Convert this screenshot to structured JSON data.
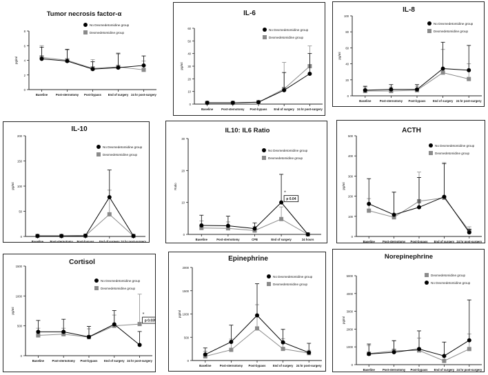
{
  "colors": {
    "no_dex": "#000000",
    "dex": "#8a8a8a",
    "axis": "#222222"
  },
  "chart_data": [
    {
      "id": "tnf",
      "type": "line",
      "title": "Tumor necrosis factor-α",
      "ylabel": "pg/ml",
      "ylim": [
        0,
        8
      ],
      "yticks": [
        "0",
        "2",
        "4",
        "6",
        "8"
      ],
      "categories": [
        "Baseline",
        "Post-sternotomy",
        "Post-bypass",
        "End of surgery",
        "24 hr post-surgery"
      ],
      "legend_order": [
        "no_dex",
        "dex"
      ],
      "series": [
        {
          "key": "no_dex",
          "name": "No Dexmedetomidine group",
          "values": [
            4.2,
            3.9,
            2.8,
            3.0,
            3.3
          ],
          "err": [
            1.6,
            1.6,
            1.0,
            1.9,
            1.3
          ]
        },
        {
          "key": "dex",
          "name": "Dexmedetomidine group",
          "values": [
            4.4,
            4.0,
            2.9,
            3.1,
            2.7
          ],
          "err": [
            1.6,
            1.4,
            1.2,
            1.9,
            1.2
          ]
        }
      ],
      "annotations": []
    },
    {
      "id": "il6",
      "type": "line",
      "title": "IL-6",
      "ylabel": "pg/ml",
      "ylim": [
        0,
        60
      ],
      "yticks": [
        "0",
        "10",
        "20",
        "30",
        "40",
        "50",
        "60"
      ],
      "categories": [
        "Baseline",
        "Post-sternotomy",
        "Post-bypass",
        "End of surgery",
        "24 hr post-surgery"
      ],
      "legend_order": [
        "no_dex",
        "dex"
      ],
      "series": [
        {
          "key": "no_dex",
          "name": "No Dexmedetomidine group",
          "values": [
            1,
            1,
            1.5,
            11,
            24
          ],
          "err": [
            0,
            0,
            0,
            14,
            16
          ]
        },
        {
          "key": "dex",
          "name": "Dexmedetomidine group",
          "values": [
            1,
            1,
            1.5,
            12,
            30
          ],
          "err": [
            0,
            0,
            0,
            21,
            16
          ]
        }
      ],
      "annotations": []
    },
    {
      "id": "il8",
      "type": "line",
      "title": "IL-8",
      "ylabel": "pg/ml",
      "ylim": [
        0,
        100
      ],
      "yticks": [
        "0",
        "20",
        "40",
        "60",
        "80",
        "100"
      ],
      "categories": [
        "Baseline",
        "Post-sternotomy",
        "Post-bypass",
        "End of surgery",
        "24 hr post-surgery"
      ],
      "legend_order": [
        "no_dex",
        "dex"
      ],
      "series": [
        {
          "key": "no_dex",
          "name": "No Dexmedetomidine group",
          "values": [
            7,
            8,
            8,
            34,
            32
          ],
          "err": [
            5,
            6,
            6,
            33,
            31
          ]
        },
        {
          "key": "dex",
          "name": "Dexmedetomidine group",
          "values": [
            6,
            6,
            7,
            29,
            21
          ],
          "err": [
            5,
            5,
            5,
            29,
            19
          ]
        }
      ],
      "annotations": []
    },
    {
      "id": "il10",
      "type": "line",
      "title": "IL-10",
      "ylabel": "pg/ml",
      "ylim": [
        0,
        200
      ],
      "yticks": [
        "0",
        "50",
        "100",
        "150",
        "200"
      ],
      "categories": [
        "Baseline",
        "Post-sternotomy",
        "Post-bypass",
        "End of surgery",
        "24 hr post-surgery"
      ],
      "legend_order": [
        "no_dex",
        "dex"
      ],
      "series": [
        {
          "key": "no_dex",
          "name": "No Dexmedetomidine group",
          "values": [
            1,
            1,
            1.5,
            78,
            1
          ],
          "err": [
            0,
            0,
            0,
            54,
            0
          ]
        },
        {
          "key": "dex",
          "name": "Dexmedetomidine group",
          "values": [
            1,
            1,
            1.5,
            44,
            1
          ],
          "err": [
            0,
            0,
            0,
            48,
            0
          ]
        }
      ],
      "annotations": []
    },
    {
      "id": "ratio",
      "type": "line",
      "title": "IL10: IL6 Ratio",
      "ylabel": "Ratio",
      "ylim": [
        0,
        30
      ],
      "yticks": [
        "0",
        "10",
        "20",
        "30"
      ],
      "categories": [
        "Baseline",
        "Post-sternotomy",
        "CPB",
        "End of surgery",
        "24 hours"
      ],
      "legend_order": [
        "no_dex",
        "dex"
      ],
      "series": [
        {
          "key": "no_dex",
          "name": "No Dexmedetomidine group",
          "values": [
            2.8,
            2.7,
            1.8,
            10,
            0
          ],
          "err": [
            3.2,
            3.0,
            1.8,
            8.8,
            0
          ]
        },
        {
          "key": "dex",
          "name": "Dexmedetomidine group",
          "values": [
            2.0,
            1.9,
            1.2,
            4.8,
            0
          ],
          "err": [
            2.2,
            2.0,
            1.3,
            3.8,
            0
          ]
        }
      ],
      "annotations": [
        {
          "category_index": 3,
          "value": 10,
          "star": "*",
          "label": "p 0.04"
        }
      ]
    },
    {
      "id": "acth",
      "type": "line",
      "title": "ACTH",
      "ylabel": "pg/ml",
      "ylim": [
        0,
        500
      ],
      "yticks": [
        "0",
        "100",
        "200",
        "300",
        "400",
        "500"
      ],
      "categories": [
        "Baseline",
        "Post-sternotomy",
        "Post-bypass",
        "End of surgery",
        "24 hr post-surgery"
      ],
      "legend_order": [
        "no_dex",
        "dex"
      ],
      "series": [
        {
          "key": "no_dex",
          "name": "No Dexmedetomidine group",
          "values": [
            162,
            108,
            145,
            197,
            20
          ],
          "err": [
            125,
            112,
            148,
            165,
            15
          ]
        },
        {
          "key": "dex",
          "name": "Dexmedetomidine group",
          "values": [
            128,
            95,
            175,
            192,
            28
          ],
          "err": [
            60,
            125,
            145,
            175,
            20
          ]
        }
      ],
      "annotations": []
    },
    {
      "id": "cortisol",
      "type": "line",
      "title": "Cortisol",
      "ylabel": "pg/ml",
      "ylim": [
        0,
        1500
      ],
      "yticks": [
        "0",
        "500",
        "1000",
        "1500"
      ],
      "categories": [
        "Baseline",
        "Post-sternotomy",
        "Post-bypass",
        "End of surgery",
        "24 hr post-surgery"
      ],
      "legend_order": [
        "no_dex",
        "dex"
      ],
      "series": [
        {
          "key": "no_dex",
          "name": "No Dexmedetomidine group",
          "values": [
            400,
            400,
            315,
            525,
            180
          ],
          "err": [
            190,
            210,
            175,
            230,
            225
          ]
        },
        {
          "key": "dex",
          "name": "Dexmedetomidine group",
          "values": [
            340,
            360,
            310,
            500,
            530
          ],
          "err": [
            120,
            100,
            140,
            180,
            500
          ]
        }
      ],
      "annotations": [
        {
          "category_index": 4,
          "value": 530,
          "star": "*",
          "label": "p 0.035"
        }
      ]
    },
    {
      "id": "epi",
      "type": "line",
      "title": "Epinephrine",
      "ylabel": "pg/ml",
      "ylim": [
        0,
        2000
      ],
      "yticks": [
        "0",
        "500",
        "1000",
        "1500",
        "2000"
      ],
      "categories": [
        "Baseline",
        "Post-sternotomy",
        "Post-bypass",
        "End of surgery",
        "24 hr post-surgery"
      ],
      "legend_order": [
        "no_dex",
        "dex"
      ],
      "series": [
        {
          "key": "no_dex",
          "name": "No Dexmedetomidine group",
          "values": [
            130,
            400,
            970,
            390,
            170
          ],
          "err": [
            140,
            360,
            680,
            280,
            200
          ]
        },
        {
          "key": "dex",
          "name": "Dexmedetomidine group",
          "values": [
            90,
            230,
            690,
            250,
            160
          ],
          "err": [
            110,
            230,
            510,
            220,
            60
          ]
        }
      ],
      "annotations": []
    },
    {
      "id": "norepi",
      "type": "line",
      "title": "Norepinephrine",
      "ylabel": "pg/ml",
      "ylim": [
        0,
        5000
      ],
      "yticks": [
        "0",
        "1000",
        "2000",
        "3000",
        "4000",
        "5000"
      ],
      "categories": [
        "Baseline",
        "Post-sternotomy",
        "Post-bypass",
        "End of surgery",
        "24 hr post-surgery"
      ],
      "legend_order": [
        "dex",
        "no_dex"
      ],
      "series": [
        {
          "key": "no_dex",
          "name": "No Dexmedetomidine group",
          "values": [
            600,
            700,
            880,
            490,
            1370
          ],
          "err": [
            560,
            650,
            1020,
            780,
            2270
          ]
        },
        {
          "key": "dex",
          "name": "Dexmedetomidine group",
          "values": [
            620,
            780,
            800,
            210,
            880
          ],
          "err": [
            460,
            560,
            700,
            230,
            850
          ]
        }
      ],
      "annotations": []
    }
  ]
}
